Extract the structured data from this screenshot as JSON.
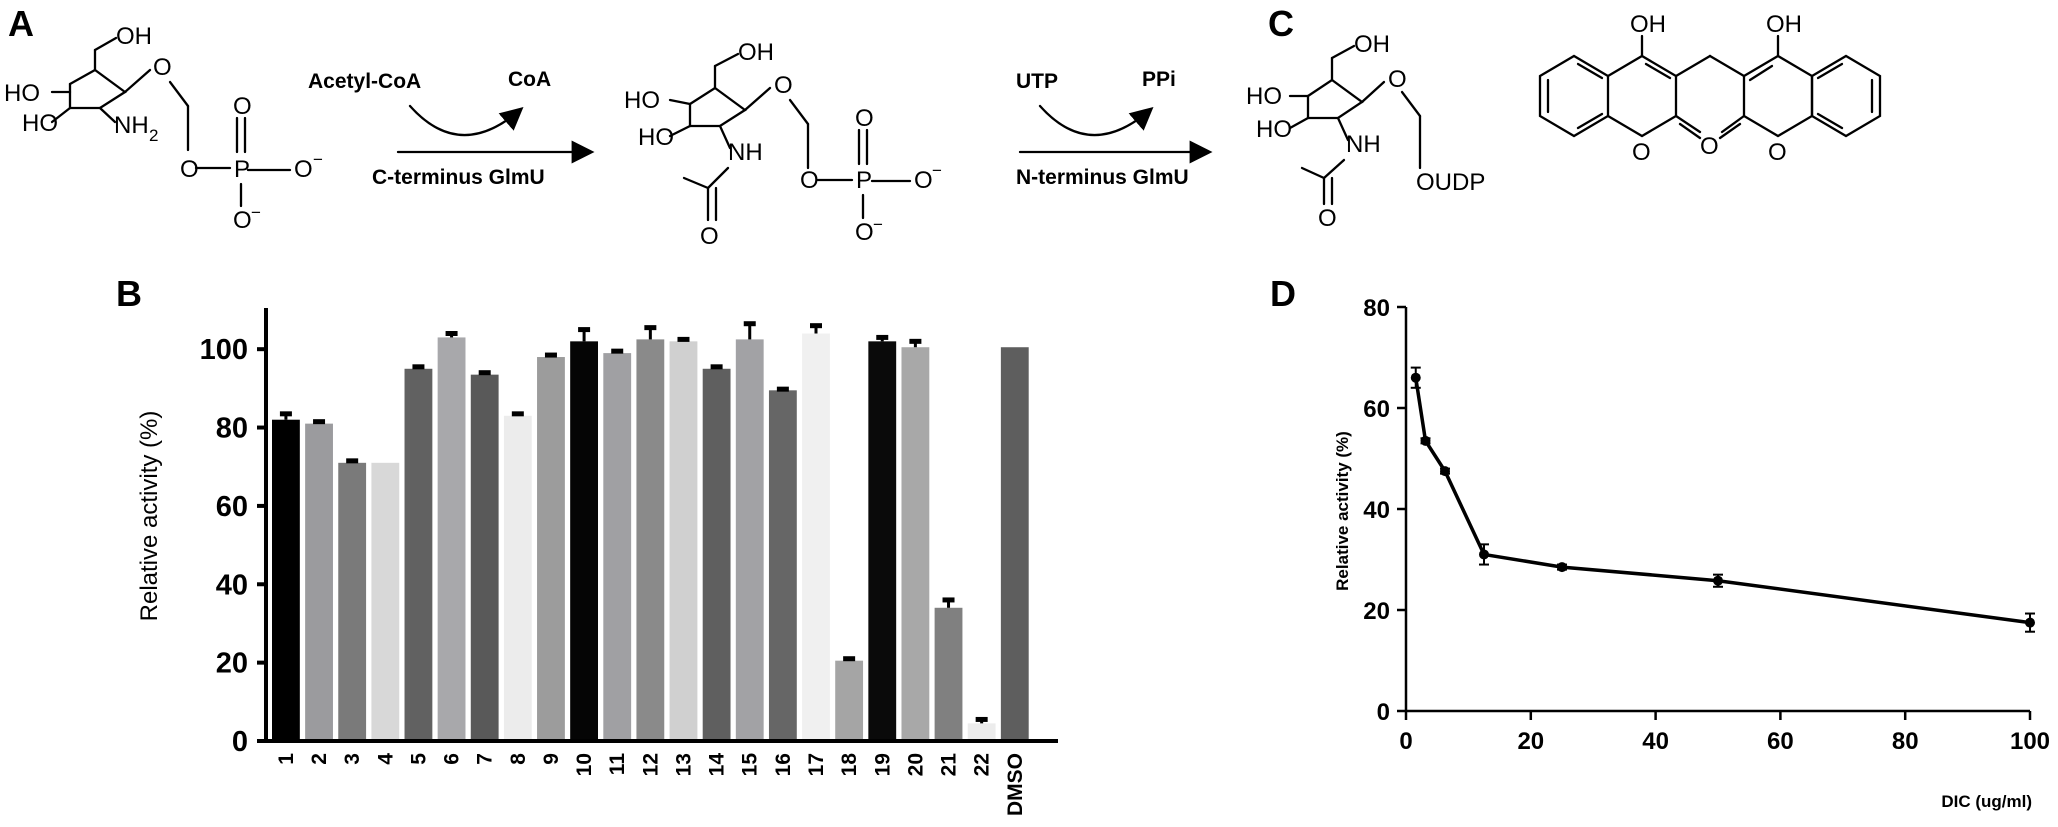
{
  "panel_labels": {
    "a": "A",
    "b": "B",
    "c": "C",
    "d": "D"
  },
  "scheme": {
    "reagent1": "Acetyl-CoA",
    "product1": "CoA",
    "enzyme1": "C-terminus GlmU",
    "reagent2": "UTP",
    "product2": "PPi",
    "enzyme2": "N-terminus GlmU",
    "atoms": {
      "OH": "OH",
      "HO": "HO",
      "NH2": "NH",
      "sub2": "2",
      "NH": "NH",
      "O": "O",
      "P": "P",
      "minus": "−",
      "OUDP": "OUDP"
    }
  },
  "chart_data": [
    {
      "id": "B",
      "type": "bar",
      "ylabel": "Relative activity (%)",
      "xlabel": "",
      "ylim": [
        0,
        110
      ],
      "yticks": [
        0,
        20,
        40,
        60,
        80,
        100
      ],
      "grid": false,
      "categories": [
        "1",
        "2",
        "3",
        "4",
        "5",
        "6",
        "7",
        "8",
        "9",
        "10",
        "11",
        "12",
        "13",
        "14",
        "15",
        "16",
        "17",
        "18",
        "19",
        "20",
        "21",
        "22",
        "DMSO"
      ],
      "values": [
        82,
        81,
        71,
        71,
        95,
        103,
        93.5,
        83,
        98,
        102,
        99,
        102.5,
        102,
        95,
        102.5,
        89.5,
        104,
        20.5,
        102,
        100.5,
        34,
        4.5,
        100.5
      ],
      "errors": [
        1.5,
        0.5,
        0.5,
        0,
        0.5,
        1,
        0.5,
        0.5,
        0.5,
        3,
        0.5,
        3,
        0.5,
        0.5,
        4,
        0.3,
        2,
        0.5,
        1,
        1.5,
        2,
        1,
        0
      ],
      "colors": [
        "#000000",
        "#9b9b9e",
        "#7a7a7a",
        "#d8d8d8",
        "#616161",
        "#a8a8ab",
        "#595959",
        "#ececec",
        "#9c9c9c",
        "#050505",
        "#a0a0a3",
        "#8a8a8a",
        "#d0d0d0",
        "#5f5f5f",
        "#a2a2a5",
        "#666666",
        "#f0f0f0",
        "#a5a5a5",
        "#0a0a0a",
        "#a8a8a8",
        "#808080",
        "#ececec",
        "#5e5e5e"
      ]
    },
    {
      "id": "D",
      "type": "line",
      "xlabel": "DIC (ug/ml)",
      "ylabel": "Relative activity (%)",
      "xlim": [
        0,
        100
      ],
      "ylim": [
        0,
        80
      ],
      "xticks": [
        0,
        20,
        40,
        60,
        80,
        100
      ],
      "yticks": [
        0,
        20,
        40,
        60,
        80
      ],
      "grid": false,
      "x": [
        1.5625,
        3.125,
        6.25,
        12.5,
        25,
        50,
        100
      ],
      "y": [
        66,
        53.5,
        47.5,
        31,
        28.5,
        25.8,
        17.5
      ],
      "errors": [
        2,
        0.5,
        0.5,
        2,
        0.5,
        1.2,
        1.8
      ],
      "color": "#000000"
    }
  ]
}
